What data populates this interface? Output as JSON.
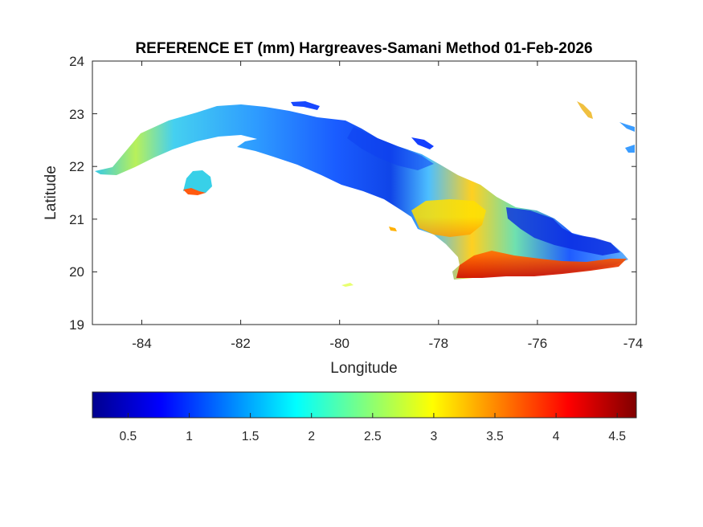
{
  "map": {
    "title": "REFERENCE ET (mm) Hargreaves-Samani Method  01-Feb-2026",
    "xlabel": "Longitude",
    "ylabel": "Latitude",
    "x_ticks": [
      "-84",
      "-82",
      "-80",
      "-78",
      "-76",
      "-74"
    ],
    "y_ticks": [
      "24",
      "23",
      "22",
      "21",
      "20",
      "19"
    ],
    "x_range": [
      -85,
      -74
    ],
    "y_range": [
      19,
      24
    ],
    "region": "Cuba",
    "colormap": "jet"
  },
  "colorbar": {
    "ticks": [
      "0.5",
      "1",
      "1.5",
      "2",
      "2.5",
      "3",
      "3.5",
      "4",
      "4.5"
    ],
    "range": [
      0.2,
      4.65
    ],
    "colors": [
      "#00008f",
      "#0000ff",
      "#00ffff",
      "#ffff00",
      "#ff0000",
      "#800000"
    ]
  }
}
